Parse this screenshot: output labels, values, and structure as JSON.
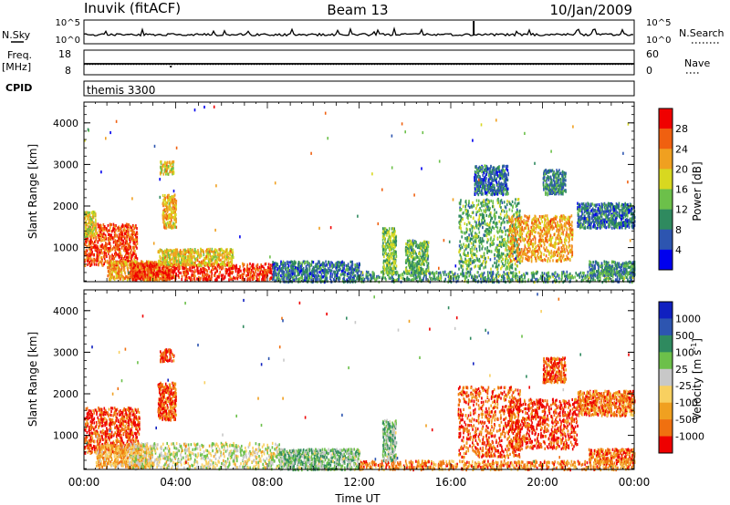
{
  "header": {
    "station": "Inuvik (fitACF)",
    "beam": "Beam 13",
    "date": "10/Jan/2009"
  },
  "strip_labels": {
    "nsky": "N.Sky",
    "nsearch": "N.Search",
    "freq": "Freq.",
    "freq_unit": "[MHz]",
    "nave": "Nave",
    "cpid": "CPID",
    "cpid_value": "themis 3300",
    "noise_ticks": [
      "10^5",
      "10^0"
    ],
    "freq_ticks": [
      "18",
      "8"
    ],
    "nave_ticks": [
      "60",
      "0"
    ]
  },
  "chart_data": [
    {
      "type": "heatmap",
      "name": "power",
      "ylabel": "Slant Range [km]",
      "xlim": [
        "00:00",
        "24:00"
      ],
      "ylim": [
        180,
        4500
      ],
      "colorbar_label": "Power [dB]",
      "colorbar_ticks": [
        "28",
        "24",
        "20",
        "16",
        "12",
        "8",
        "4"
      ],
      "colormap": [
        "#0000ee",
        "#2d55b0",
        "#2f8a5f",
        "#6cc04a",
        "#d8d820",
        "#f0a020",
        "#f06010",
        "#f00000"
      ],
      "x_ticks": [
        "00:00",
        "04:00",
        "08:00",
        "12:00",
        "16:00",
        "20:00",
        "00:00"
      ],
      "y_ticks": [
        "1000",
        "2000",
        "3000",
        "4000"
      ],
      "regions": [
        {
          "t0": 0.0,
          "t1": 2.3,
          "r0": 600,
          "r1": 1600,
          "level": 0.85
        },
        {
          "t0": 0.0,
          "t1": 0.5,
          "r0": 1300,
          "r1": 1900,
          "level": 0.55
        },
        {
          "t0": 1.0,
          "t1": 3.8,
          "r0": 250,
          "r1": 700,
          "level": 0.7
        },
        {
          "t0": 2.0,
          "t1": 8.2,
          "r0": 250,
          "r1": 650,
          "level": 0.9
        },
        {
          "t0": 3.2,
          "t1": 6.5,
          "r0": 600,
          "r1": 1000,
          "level": 0.6
        },
        {
          "t0": 3.4,
          "t1": 4.0,
          "r0": 1500,
          "r1": 2300,
          "level": 0.65
        },
        {
          "t0": 3.3,
          "t1": 3.9,
          "r0": 2800,
          "r1": 3100,
          "level": 0.6
        },
        {
          "t0": 8.2,
          "t1": 12.0,
          "r0": 200,
          "r1": 700,
          "level": 0.25
        },
        {
          "t0": 12.0,
          "t1": 24.0,
          "r0": 200,
          "r1": 450,
          "level": 0.35
        },
        {
          "t0": 13.0,
          "t1": 13.6,
          "r0": 400,
          "r1": 1500,
          "level": 0.45
        },
        {
          "t0": 14.0,
          "t1": 15.0,
          "r0": 400,
          "r1": 1200,
          "level": 0.4
        },
        {
          "t0": 16.3,
          "t1": 19.0,
          "r0": 500,
          "r1": 2200,
          "level": 0.4
        },
        {
          "t0": 17.0,
          "t1": 18.5,
          "r0": 2300,
          "r1": 3000,
          "level": 0.25
        },
        {
          "t0": 18.5,
          "t1": 21.3,
          "r0": 700,
          "r1": 1800,
          "level": 0.7
        },
        {
          "t0": 20.0,
          "t1": 21.0,
          "r0": 2300,
          "r1": 2900,
          "level": 0.3
        },
        {
          "t0": 21.5,
          "t1": 24.0,
          "r0": 1500,
          "r1": 2100,
          "level": 0.25
        },
        {
          "t0": 22.0,
          "t1": 24.0,
          "r0": 350,
          "r1": 700,
          "level": 0.3
        }
      ]
    },
    {
      "type": "heatmap",
      "name": "velocity",
      "ylabel": "Slant Range [km]",
      "xlabel": "Time UT",
      "xlim": [
        "00:00",
        "24:00"
      ],
      "ylim": [
        180,
        4500
      ],
      "colorbar_label": "Velocity [m s-1]",
      "colorbar_label_parts": [
        "Velocity [m s",
        "-1",
        "]"
      ],
      "colorbar_ticks": [
        "1000",
        "500",
        "100",
        "25",
        "-25",
        "-100",
        "-500",
        "-1000"
      ],
      "colormap": [
        "#ee0000",
        "#f07010",
        "#f0a020",
        "#f8d060",
        "#c8c8c8",
        "#6cc04a",
        "#2f8a5f",
        "#2d55b0",
        "#1020c0"
      ],
      "x_ticks": [
        "00:00",
        "04:00",
        "08:00",
        "12:00",
        "16:00",
        "20:00",
        "00:00"
      ],
      "y_ticks": [
        "1000",
        "2000",
        "3000",
        "4000"
      ],
      "regions": [
        {
          "t0": 0.0,
          "t1": 2.4,
          "r0": 600,
          "r1": 1700,
          "level": 0.12
        },
        {
          "t0": 0.5,
          "t1": 3.0,
          "r0": 250,
          "r1": 800,
          "level": 0.3
        },
        {
          "t0": 2.0,
          "t1": 8.5,
          "r0": 220,
          "r1": 850,
          "level": 0.48
        },
        {
          "t0": 3.2,
          "t1": 4.0,
          "r0": 1400,
          "r1": 2300,
          "level": 0.15
        },
        {
          "t0": 3.3,
          "t1": 3.9,
          "r0": 2800,
          "r1": 3100,
          "level": 0.12
        },
        {
          "t0": 8.5,
          "t1": 12.0,
          "r0": 200,
          "r1": 700,
          "level": 0.6
        },
        {
          "t0": 12.0,
          "t1": 24.0,
          "r0": 180,
          "r1": 420,
          "level": 0.22
        },
        {
          "t0": 13.0,
          "t1": 13.6,
          "r0": 400,
          "r1": 1400,
          "level": 0.6
        },
        {
          "t0": 16.3,
          "t1": 19.0,
          "r0": 500,
          "r1": 2200,
          "level": 0.15
        },
        {
          "t0": 18.5,
          "t1": 21.5,
          "r0": 700,
          "r1": 1900,
          "level": 0.1
        },
        {
          "t0": 20.0,
          "t1": 21.0,
          "r0": 2300,
          "r1": 2900,
          "level": 0.15
        },
        {
          "t0": 21.5,
          "t1": 24.0,
          "r0": 1500,
          "r1": 2100,
          "level": 0.2
        },
        {
          "t0": 22.0,
          "t1": 24.0,
          "r0": 350,
          "r1": 700,
          "level": 0.2
        }
      ]
    }
  ]
}
